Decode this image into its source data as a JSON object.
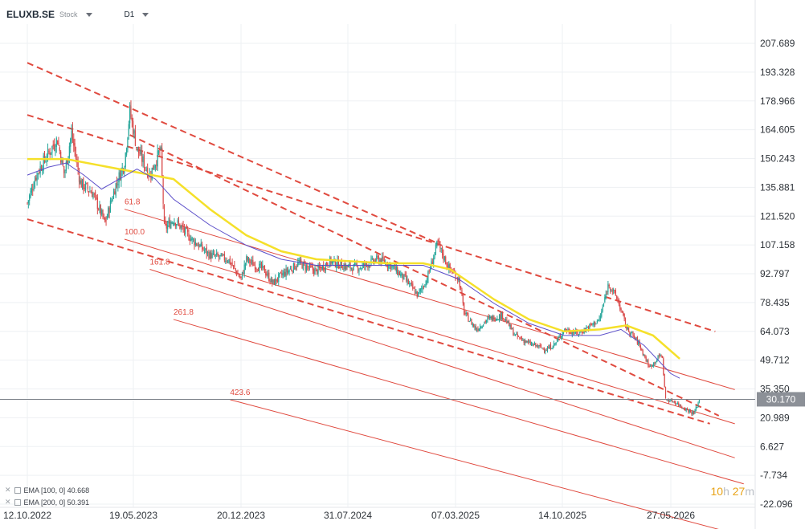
{
  "header": {
    "symbol": "ELUXB.SE",
    "instrument_type": "Stock",
    "timeframe": "D1"
  },
  "legend": [
    {
      "label": "EMA [100, 0] 40.668"
    },
    {
      "label": "EMA [200, 0] 50.391"
    }
  ],
  "timer": {
    "hours": "10",
    "h": "h",
    "minutes": "27",
    "m": "m"
  },
  "colors": {
    "up": "#26a69a",
    "down": "#d94a4a",
    "ema100": "#5c4fc9",
    "ema200": "#f5e02a",
    "fib": "#e04a3f",
    "trend": "#e04a3f",
    "grid": "#eef0f3",
    "price_line": "#7b8088"
  },
  "chart_data": {
    "type": "candlestick",
    "y_ticks": [
      "207.689",
      "193.328",
      "178.966",
      "164.605",
      "150.243",
      "135.881",
      "121.520",
      "107.158",
      "92.797",
      "78.435",
      "64.073",
      "49.712",
      "35.350",
      "20.989",
      "6.627",
      "-7.734",
      "-22.096"
    ],
    "x_ticks": [
      "12.10.2022",
      "19.05.2023",
      "20.12.2023",
      "31.07.2024",
      "07.03.2025",
      "14.10.2025",
      "27.05.2026"
    ],
    "current_price": "30.170",
    "fib_labels": [
      "61.8",
      "100.0",
      "161.8",
      "261.8",
      "423.6"
    ],
    "ylim": [
      -22.096,
      207.689
    ],
    "grid": true,
    "series": [
      {
        "name": "EMA [100, 0]",
        "value": 40.668
      },
      {
        "name": "EMA [200, 0]",
        "value": 50.391
      }
    ],
    "price_path": [
      [
        2022.78,
        128
      ],
      [
        2022.83,
        142
      ],
      [
        2022.88,
        150
      ],
      [
        2022.95,
        160
      ],
      [
        2022.99,
        142
      ],
      [
        2023.03,
        163
      ],
      [
        2023.08,
        138
      ],
      [
        2023.15,
        133
      ],
      [
        2023.22,
        118
      ],
      [
        2023.28,
        137
      ],
      [
        2023.33,
        148
      ],
      [
        2023.36,
        174
      ],
      [
        2023.4,
        155
      ],
      [
        2023.47,
        142
      ],
      [
        2023.53,
        155
      ],
      [
        2023.55,
        115
      ],
      [
        2023.6,
        120
      ],
      [
        2023.7,
        110
      ],
      [
        2023.8,
        102
      ],
      [
        2023.9,
        100
      ],
      [
        2023.97,
        90
      ],
      [
        2024.0,
        100
      ],
      [
        2024.05,
        97
      ],
      [
        2024.1,
        95
      ],
      [
        2024.15,
        88
      ],
      [
        2024.2,
        92
      ],
      [
        2024.3,
        98
      ],
      [
        2024.4,
        94
      ],
      [
        2024.48,
        99
      ],
      [
        2024.58,
        96
      ],
      [
        2024.65,
        96
      ],
      [
        2024.75,
        100
      ],
      [
        2024.82,
        97
      ],
      [
        2024.9,
        90
      ],
      [
        2024.97,
        82
      ],
      [
        2025.02,
        90
      ],
      [
        2025.08,
        108
      ],
      [
        2025.14,
        96
      ],
      [
        2025.2,
        90
      ],
      [
        2025.23,
        73
      ],
      [
        2025.3,
        65
      ],
      [
        2025.36,
        70
      ],
      [
        2025.45,
        72
      ],
      [
        2025.52,
        62
      ],
      [
        2025.6,
        58
      ],
      [
        2025.7,
        55
      ],
      [
        2025.75,
        58
      ],
      [
        2025.8,
        65
      ],
      [
        2025.88,
        63
      ],
      [
        2025.95,
        67
      ],
      [
        2026.0,
        70
      ],
      [
        2026.05,
        88
      ],
      [
        2026.1,
        80
      ],
      [
        2026.15,
        66
      ],
      [
        2026.22,
        58
      ],
      [
        2026.28,
        46
      ],
      [
        2026.35,
        53
      ],
      [
        2026.37,
        30
      ],
      [
        2026.42,
        29
      ],
      [
        2026.47,
        26
      ],
      [
        2026.53,
        23
      ],
      [
        2026.56,
        30
      ]
    ],
    "ema100_path": [
      [
        2022.78,
        142
      ],
      [
        2022.9,
        146
      ],
      [
        2023.0,
        148
      ],
      [
        2023.1,
        142
      ],
      [
        2023.2,
        135
      ],
      [
        2023.3,
        140
      ],
      [
        2023.4,
        145
      ],
      [
        2023.5,
        140
      ],
      [
        2023.6,
        130
      ],
      [
        2023.8,
        117
      ],
      [
        2024.0,
        107
      ],
      [
        2024.2,
        100
      ],
      [
        2024.4,
        97
      ],
      [
        2024.6,
        97
      ],
      [
        2024.8,
        97
      ],
      [
        2025.0,
        97
      ],
      [
        2025.2,
        90
      ],
      [
        2025.4,
        78
      ],
      [
        2025.6,
        68
      ],
      [
        2025.8,
        62
      ],
      [
        2026.0,
        62
      ],
      [
        2026.12,
        65
      ],
      [
        2026.25,
        57
      ],
      [
        2026.4,
        43
      ],
      [
        2026.45,
        40.668
      ]
    ],
    "ema200_path": [
      [
        2022.78,
        150
      ],
      [
        2023.0,
        150
      ],
      [
        2023.3,
        145
      ],
      [
        2023.6,
        140
      ],
      [
        2023.8,
        125
      ],
      [
        2024.0,
        112
      ],
      [
        2024.2,
        104
      ],
      [
        2024.4,
        100
      ],
      [
        2024.6,
        99
      ],
      [
        2024.8,
        98
      ],
      [
        2025.0,
        98
      ],
      [
        2025.15,
        95
      ],
      [
        2025.4,
        80
      ],
      [
        2025.6,
        70
      ],
      [
        2025.8,
        64
      ],
      [
        2026.0,
        65
      ],
      [
        2026.15,
        67
      ],
      [
        2026.3,
        62
      ],
      [
        2026.45,
        50.391
      ]
    ],
    "trend_lines": [
      {
        "from": [
          2022.78,
          198
        ],
        "to": [
          2025.08,
          108
        ],
        "style": "dashed"
      },
      {
        "from": [
          2022.78,
          172
        ],
        "to": [
          2026.65,
          64
        ],
        "style": "dashed"
      },
      {
        "from": [
          2022.78,
          120
        ],
        "to": [
          2026.62,
          18
        ],
        "style": "dashed"
      },
      {
        "from": [
          2023.36,
          162
        ],
        "to": [
          2026.67,
          22
        ],
        "style": "dashed"
      }
    ],
    "fib_lines": [
      {
        "label": "61.8",
        "from": [
          2023.33,
          125
        ],
        "to": [
          2026.76,
          35
        ]
      },
      {
        "label": "100.0",
        "from": [
          2023.33,
          110
        ],
        "to": [
          2026.76,
          18
        ]
      },
      {
        "label": "161.8",
        "from": [
          2023.47,
          95
        ],
        "to": [
          2026.76,
          1
        ]
      },
      {
        "label": "261.8",
        "from": [
          2023.6,
          70
        ],
        "to": [
          2026.81,
          -12
        ]
      },
      {
        "label": "423.6",
        "from": [
          2023.91,
          30
        ],
        "to": [
          2026.81,
          -38
        ]
      }
    ]
  }
}
